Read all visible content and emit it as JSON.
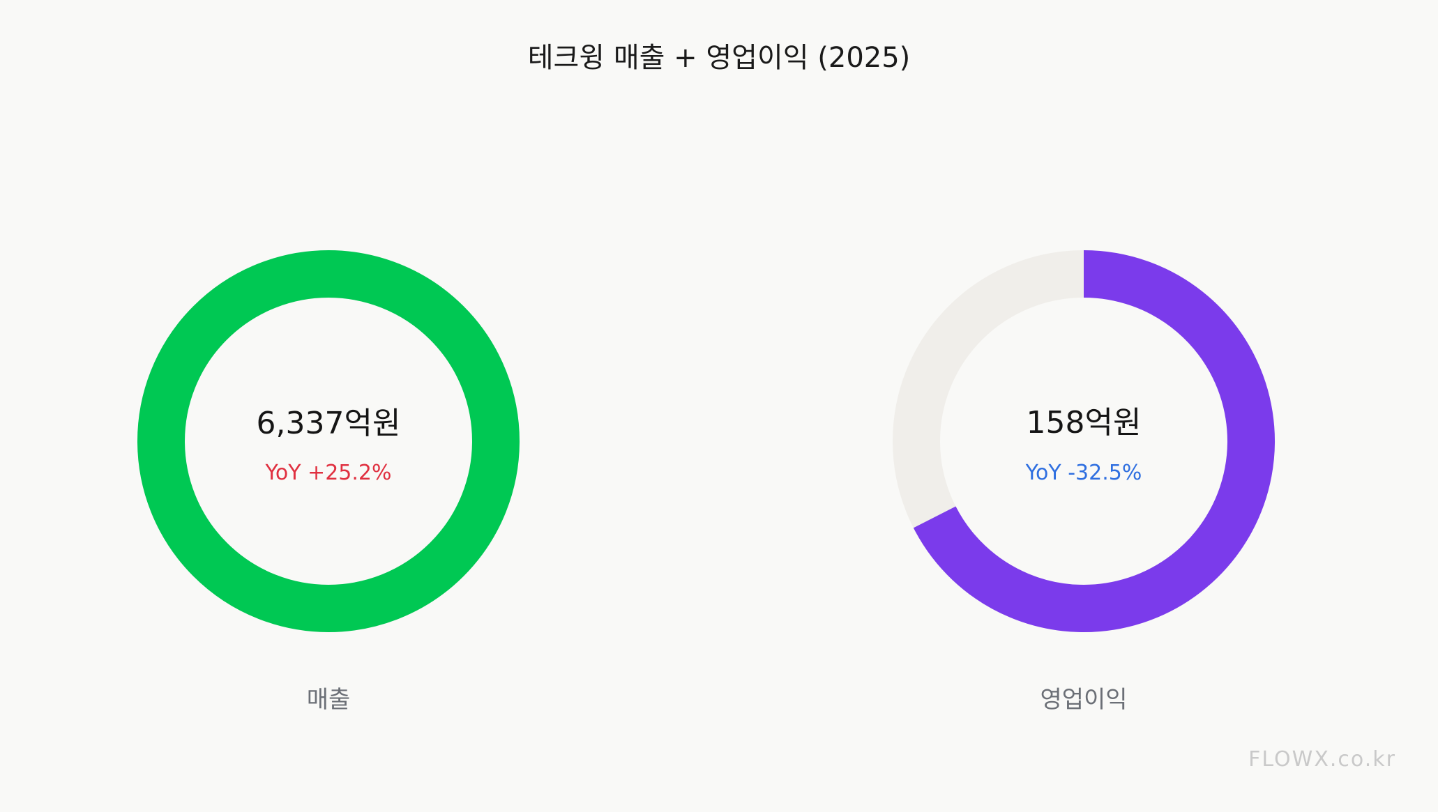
{
  "chart_data": {
    "type": "pie",
    "title": "테크윙  매출 + 영업이익 (2025)",
    "unit": "억원",
    "charts": [
      {
        "name": "매출",
        "value": 6337,
        "value_label": "6,337억원",
        "yoy_label": "YoY +25.2%",
        "fill_fraction": 1.0,
        "color": "#00c853",
        "track_color": "#f0eeea",
        "yoy_color": "#e03040"
      },
      {
        "name": "영업이익",
        "value": 158,
        "value_label": "158억원",
        "yoy_label": "YoY -32.5%",
        "fill_fraction": 0.675,
        "color": "#7b3beb",
        "track_color": "#f0eeea",
        "yoy_color": "#2f6fe0"
      }
    ]
  },
  "watermark": "FLOWX.co.kr"
}
